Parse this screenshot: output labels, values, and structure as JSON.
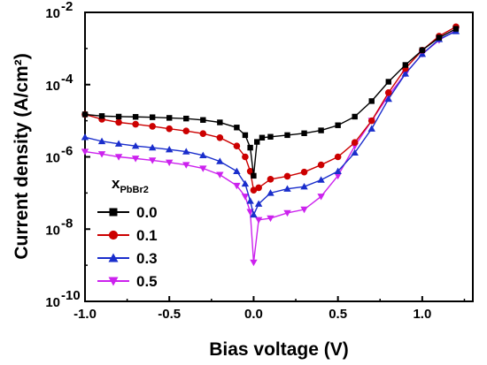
{
  "chart_data": {
    "type": "scatter",
    "xlabel": "Bias voltage (V)",
    "ylabel": "Current density (A/cm²)",
    "xlim": [
      -1.0,
      1.3
    ],
    "ylim": [
      1e-10,
      0.01
    ],
    "yscale": "log",
    "grid": false,
    "legend": {
      "title": "x",
      "title_sub": "PbBr2",
      "placement": "lower-left"
    },
    "x_ticks": [
      {
        "value": -1.0,
        "label": "-1.0"
      },
      {
        "value": -0.5,
        "label": "-0.5"
      },
      {
        "value": 0.0,
        "label": "0.0"
      },
      {
        "value": 0.5,
        "label": "0.5"
      },
      {
        "value": 1.0,
        "label": "1.0"
      }
    ],
    "y_ticks": [
      {
        "value": 1e-10,
        "mant": "10",
        "exp": "-10"
      },
      {
        "value": 1e-08,
        "mant": "10",
        "exp": "-8"
      },
      {
        "value": 1e-06,
        "mant": "10",
        "exp": "-6"
      },
      {
        "value": 0.0001,
        "mant": "10",
        "exp": "-4"
      },
      {
        "value": 0.01,
        "mant": "10",
        "exp": "-2"
      }
    ],
    "series": [
      {
        "name": "0.0",
        "color": "#000000",
        "marker": "square",
        "points": [
          [
            -1.0,
            1.5e-05
          ],
          [
            -0.9,
            1.35e-05
          ],
          [
            -0.8,
            1.3e-05
          ],
          [
            -0.7,
            1.28e-05
          ],
          [
            -0.6,
            1.25e-05
          ],
          [
            -0.5,
            1.2e-05
          ],
          [
            -0.4,
            1.15e-05
          ],
          [
            -0.3,
            1.05e-05
          ],
          [
            -0.2,
            9e-06
          ],
          [
            -0.1,
            6.5e-06
          ],
          [
            -0.05,
            4e-06
          ],
          [
            -0.02,
            1.8e-06
          ],
          [
            0.0,
            3e-07
          ],
          [
            0.02,
            2.6e-06
          ],
          [
            0.05,
            3.4e-06
          ],
          [
            0.1,
            3.6e-06
          ],
          [
            0.2,
            4e-06
          ],
          [
            0.3,
            4.5e-06
          ],
          [
            0.4,
            5.4e-06
          ],
          [
            0.5,
            7.5e-06
          ],
          [
            0.6,
            1.3e-05
          ],
          [
            0.7,
            3.5e-05
          ],
          [
            0.8,
            0.00012
          ],
          [
            0.9,
            0.00035
          ],
          [
            1.0,
            0.0009
          ],
          [
            1.1,
            0.002
          ],
          [
            1.2,
            0.0035
          ]
        ]
      },
      {
        "name": "0.1",
        "color": "#cc0000",
        "marker": "circle",
        "points": [
          [
            -1.0,
            1.5e-05
          ],
          [
            -0.9,
            1.1e-05
          ],
          [
            -0.8,
            9e-06
          ],
          [
            -0.7,
            8e-06
          ],
          [
            -0.6,
            7e-06
          ],
          [
            -0.5,
            6e-06
          ],
          [
            -0.4,
            5.2e-06
          ],
          [
            -0.3,
            4.4e-06
          ],
          [
            -0.2,
            3.4e-06
          ],
          [
            -0.1,
            2e-06
          ],
          [
            -0.05,
            1e-06
          ],
          [
            -0.02,
            4e-07
          ],
          [
            0.0,
            1.2e-07
          ],
          [
            0.03,
            1.4e-07
          ],
          [
            0.1,
            2.4e-07
          ],
          [
            0.2,
            2.9e-07
          ],
          [
            0.3,
            3.8e-07
          ],
          [
            0.4,
            6e-07
          ],
          [
            0.5,
            1e-06
          ],
          [
            0.6,
            2.5e-06
          ],
          [
            0.7,
            1e-05
          ],
          [
            0.8,
            6e-05
          ],
          [
            0.9,
            0.00028
          ],
          [
            1.0,
            0.0009
          ],
          [
            1.1,
            0.0022
          ],
          [
            1.2,
            0.004
          ]
        ]
      },
      {
        "name": "0.3",
        "color": "#1a2ecc",
        "marker": "triangle-up",
        "points": [
          [
            -1.0,
            3.5e-06
          ],
          [
            -0.9,
            2.7e-06
          ],
          [
            -0.8,
            2.3e-06
          ],
          [
            -0.7,
            2e-06
          ],
          [
            -0.6,
            1.8e-06
          ],
          [
            -0.5,
            1.6e-06
          ],
          [
            -0.4,
            1.4e-06
          ],
          [
            -0.3,
            1.1e-06
          ],
          [
            -0.2,
            7.5e-07
          ],
          [
            -0.1,
            4e-07
          ],
          [
            -0.05,
            1.8e-07
          ],
          [
            -0.02,
            6e-08
          ],
          [
            0.0,
            2.5e-08
          ],
          [
            0.03,
            5e-08
          ],
          [
            0.1,
            1e-07
          ],
          [
            0.2,
            1.3e-07
          ],
          [
            0.3,
            1.5e-07
          ],
          [
            0.4,
            2.3e-07
          ],
          [
            0.5,
            4e-07
          ],
          [
            0.6,
            1.3e-06
          ],
          [
            0.7,
            6e-06
          ],
          [
            0.8,
            4e-05
          ],
          [
            0.9,
            0.0002
          ],
          [
            1.0,
            0.0007
          ],
          [
            1.1,
            0.0018
          ],
          [
            1.2,
            0.003
          ]
        ]
      },
      {
        "name": "0.5",
        "color": "#cc22ee",
        "marker": "triangle-down",
        "points": [
          [
            -1.0,
            1.4e-06
          ],
          [
            -0.9,
            1.2e-06
          ],
          [
            -0.8,
            1e-06
          ],
          [
            -0.7,
            9e-07
          ],
          [
            -0.6,
            8e-07
          ],
          [
            -0.5,
            7e-07
          ],
          [
            -0.4,
            6e-07
          ],
          [
            -0.3,
            4.8e-07
          ],
          [
            -0.2,
            3.2e-07
          ],
          [
            -0.1,
            1.6e-07
          ],
          [
            -0.05,
            8e-08
          ],
          [
            -0.02,
            3e-08
          ],
          [
            0.0,
            1.2e-09
          ],
          [
            0.03,
            1.8e-08
          ],
          [
            0.1,
            2e-08
          ],
          [
            0.2,
            2.8e-08
          ],
          [
            0.3,
            3.5e-08
          ],
          [
            0.4,
            8e-08
          ],
          [
            0.5,
            3e-07
          ],
          [
            0.6,
            2e-06
          ],
          [
            0.7,
            1e-05
          ],
          [
            0.8,
            5e-05
          ],
          [
            0.9,
            0.0002
          ],
          [
            1.0,
            0.0007
          ],
          [
            1.1,
            0.0017
          ],
          [
            1.2,
            0.0032
          ]
        ]
      }
    ]
  }
}
